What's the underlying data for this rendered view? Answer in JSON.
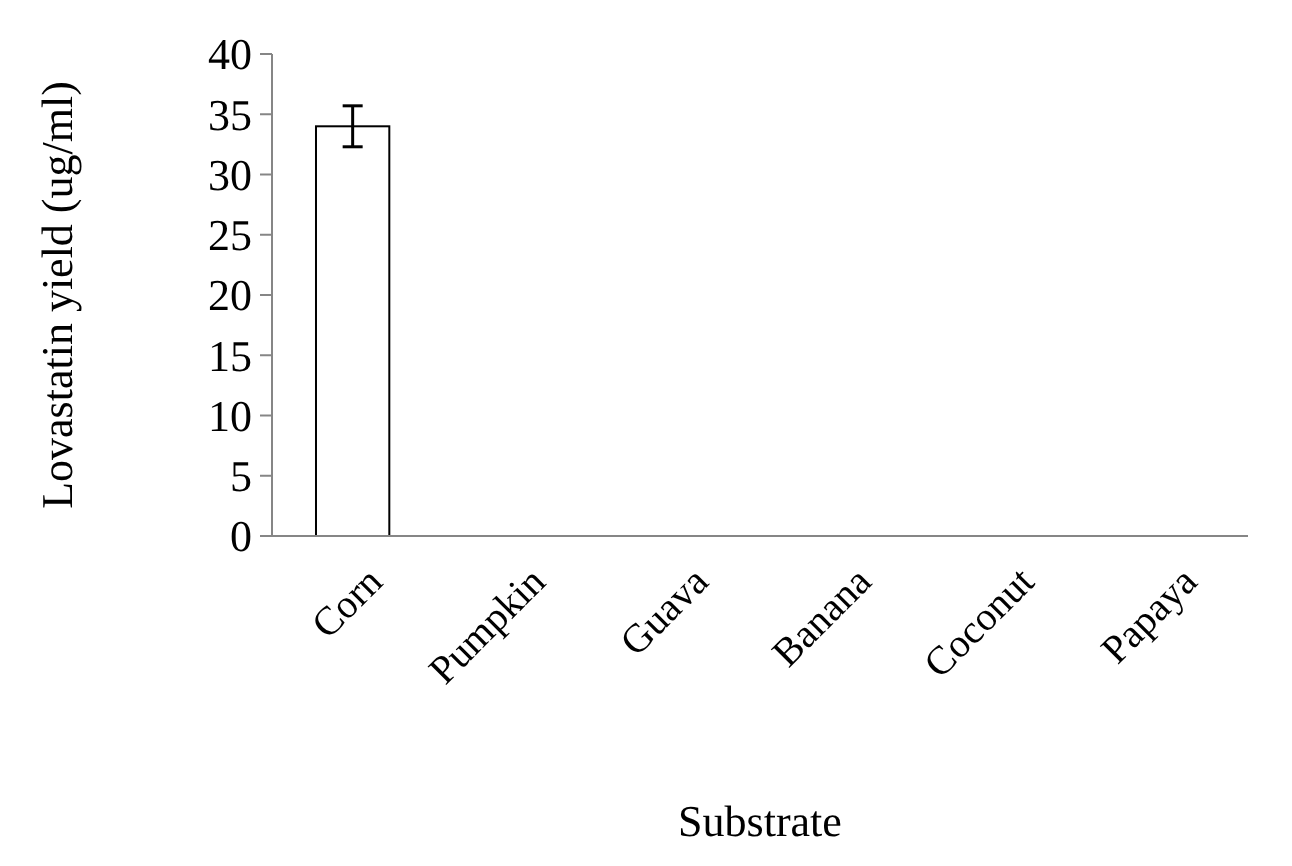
{
  "chart_data": {
    "type": "bar",
    "xlabel": "Substrate",
    "ylabel": "Lovastatin yield (ug/ml)",
    "categories": [
      "Corn",
      "Pumpkin",
      "Guava",
      "Banana",
      "Coconut",
      "Papaya"
    ],
    "values": [
      34,
      0,
      0,
      0,
      0,
      0
    ],
    "errors": [
      1.7,
      null,
      null,
      null,
      null,
      null
    ],
    "color": "#ffffff",
    "ylim": [
      0,
      40
    ],
    "yticks": [
      0,
      5,
      10,
      15,
      20,
      25,
      30,
      35,
      40
    ],
    "grid": false
  }
}
